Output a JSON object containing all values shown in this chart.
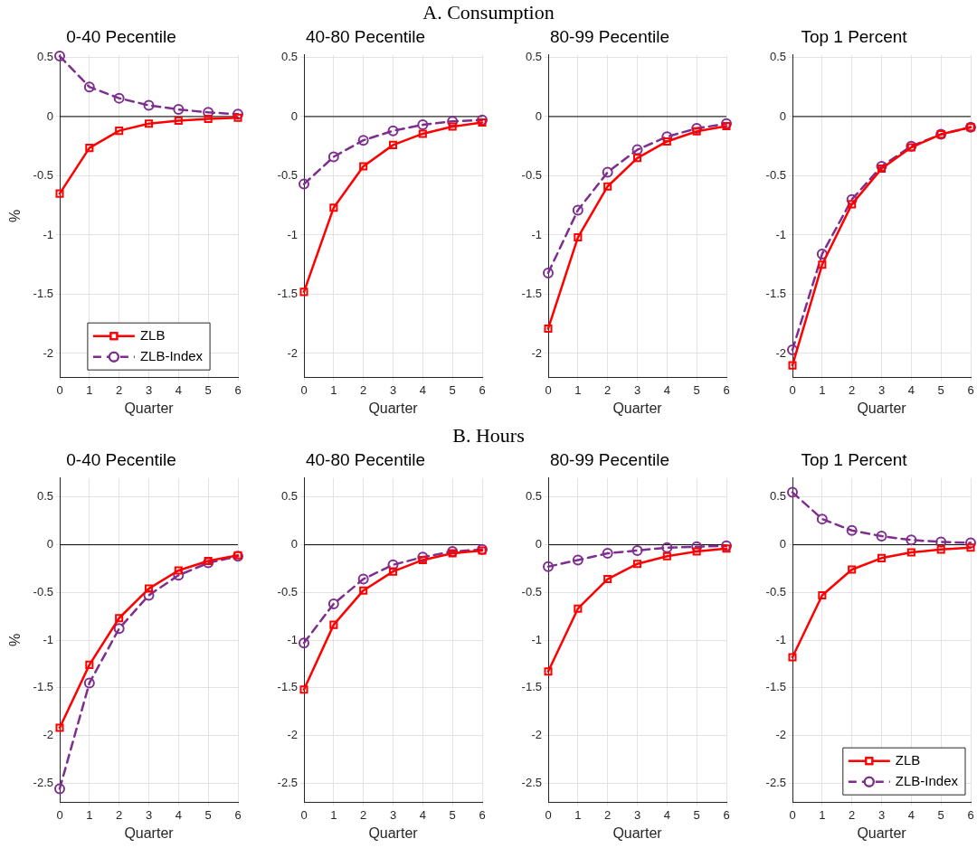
{
  "chart_data": [
    {
      "type": "line",
      "title": "0-40 Pecentile",
      "annotations": [
        "A. Consumption"
      ],
      "xlabel": "Quarter",
      "ylabel": "%",
      "x": [
        0,
        1,
        2,
        3,
        4,
        5,
        6
      ],
      "xlim": [
        0,
        6
      ],
      "xticks": [
        0,
        1,
        2,
        3,
        4,
        5,
        6
      ],
      "ylim": [
        -2.2,
        0.52
      ],
      "yticks": [
        -2,
        -1.5,
        -1,
        -0.5,
        0,
        0.5
      ],
      "grid": true,
      "legend": "bottom",
      "ref_lines": [
        {
          "axis": "y",
          "value": 0,
          "color": "#000000"
        }
      ],
      "series": [
        {
          "name": "ZLB",
          "color": "#ff0000",
          "marker": "square",
          "line_style": "solid",
          "values": [
            -0.65,
            -0.265,
            -0.12,
            -0.06,
            -0.035,
            -0.02,
            -0.01
          ]
        },
        {
          "name": "ZLB-Index",
          "color": "#7e2f8e",
          "marker": "circle",
          "line_style": "dashed",
          "values": [
            0.51,
            0.25,
            0.155,
            0.095,
            0.06,
            0.035,
            0.02
          ]
        }
      ]
    },
    {
      "type": "line",
      "title": "40-80 Pecentile",
      "xlabel": "Quarter",
      "x": [
        0,
        1,
        2,
        3,
        4,
        5,
        6
      ],
      "xlim": [
        0,
        6
      ],
      "xticks": [
        0,
        1,
        2,
        3,
        4,
        5,
        6
      ],
      "ylim": [
        -2.2,
        0.52
      ],
      "yticks": [
        -2,
        -1.5,
        -1,
        -0.5,
        0,
        0.5
      ],
      "grid": true,
      "ref_lines": [
        {
          "axis": "y",
          "value": 0,
          "color": "#000000"
        }
      ],
      "series": [
        {
          "color": "#ff0000",
          "marker": "square",
          "line_style": "solid",
          "values": [
            -1.48,
            -0.77,
            -0.42,
            -0.24,
            -0.145,
            -0.085,
            -0.05
          ]
        },
        {
          "color": "#7e2f8e",
          "marker": "circle",
          "line_style": "dashed",
          "values": [
            -0.57,
            -0.34,
            -0.2,
            -0.12,
            -0.07,
            -0.04,
            -0.03
          ]
        }
      ]
    },
    {
      "type": "line",
      "title": "80-99 Pecentile",
      "xlabel": "Quarter",
      "x": [
        0,
        1,
        2,
        3,
        4,
        5,
        6
      ],
      "xlim": [
        0,
        6
      ],
      "xticks": [
        0,
        1,
        2,
        3,
        4,
        5,
        6
      ],
      "ylim": [
        -2.2,
        0.52
      ],
      "yticks": [
        -2,
        -1.5,
        -1,
        -0.5,
        0,
        0.5
      ],
      "grid": true,
      "ref_lines": [
        {
          "axis": "y",
          "value": 0,
          "color": "#000000"
        }
      ],
      "series": [
        {
          "color": "#ff0000",
          "marker": "square",
          "line_style": "solid",
          "values": [
            -1.79,
            -1.02,
            -0.59,
            -0.35,
            -0.21,
            -0.125,
            -0.08
          ]
        },
        {
          "color": "#7e2f8e",
          "marker": "circle",
          "line_style": "dashed",
          "values": [
            -1.32,
            -0.79,
            -0.47,
            -0.28,
            -0.17,
            -0.1,
            -0.06
          ]
        }
      ]
    },
    {
      "type": "line",
      "title": "Top 1 Percent",
      "xlabel": "Quarter",
      "x": [
        0,
        1,
        2,
        3,
        4,
        5,
        6
      ],
      "xlim": [
        0,
        6
      ],
      "xticks": [
        0,
        1,
        2,
        3,
        4,
        5,
        6
      ],
      "ylim": [
        -2.2,
        0.52
      ],
      "yticks": [
        -2,
        -1.5,
        -1,
        -0.5,
        0,
        0.5
      ],
      "grid": true,
      "ref_lines": [
        {
          "axis": "y",
          "value": 0,
          "color": "#000000"
        }
      ],
      "series": [
        {
          "color": "#ff0000",
          "marker": "square",
          "line_style": "solid",
          "values": [
            -2.1,
            -1.25,
            -0.74,
            -0.44,
            -0.26,
            -0.15,
            -0.09
          ]
        },
        {
          "color": "#7e2f8e",
          "marker": "circle",
          "line_style": "dashed",
          "values": [
            -1.97,
            -1.16,
            -0.7,
            -0.42,
            -0.25,
            -0.15,
            -0.09
          ]
        }
      ]
    },
    {
      "type": "line",
      "title": "0-40 Pecentile",
      "annotations": [
        "B. Hours"
      ],
      "xlabel": "Quarter",
      "ylabel": "%",
      "x": [
        0,
        1,
        2,
        3,
        4,
        5,
        6
      ],
      "xlim": [
        0,
        6
      ],
      "xticks": [
        0,
        1,
        2,
        3,
        4,
        5,
        6
      ],
      "ylim": [
        -2.7,
        0.7
      ],
      "yticks": [
        -2.5,
        -2,
        -1.5,
        -1,
        -0.5,
        0,
        0.5
      ],
      "grid": true,
      "ref_lines": [
        {
          "axis": "y",
          "value": 0,
          "color": "#000000"
        }
      ],
      "series": [
        {
          "color": "#ff0000",
          "marker": "square",
          "line_style": "solid",
          "values": [
            -1.92,
            -1.26,
            -0.77,
            -0.46,
            -0.27,
            -0.17,
            -0.11
          ]
        },
        {
          "color": "#7e2f8e",
          "marker": "circle",
          "line_style": "dashed",
          "values": [
            -2.56,
            -1.45,
            -0.88,
            -0.53,
            -0.32,
            -0.19,
            -0.12
          ]
        }
      ]
    },
    {
      "type": "line",
      "title": "40-80 Pecentile",
      "xlabel": "Quarter",
      "x": [
        0,
        1,
        2,
        3,
        4,
        5,
        6
      ],
      "xlim": [
        0,
        6
      ],
      "xticks": [
        0,
        1,
        2,
        3,
        4,
        5,
        6
      ],
      "ylim": [
        -2.7,
        0.7
      ],
      "yticks": [
        -2.5,
        -2,
        -1.5,
        -1,
        -0.5,
        0,
        0.5
      ],
      "grid": true,
      "ref_lines": [
        {
          "axis": "y",
          "value": 0,
          "color": "#000000"
        }
      ],
      "series": [
        {
          "color": "#ff0000",
          "marker": "square",
          "line_style": "solid",
          "values": [
            -1.52,
            -0.84,
            -0.48,
            -0.28,
            -0.16,
            -0.09,
            -0.06
          ]
        },
        {
          "color": "#7e2f8e",
          "marker": "circle",
          "line_style": "dashed",
          "values": [
            -1.03,
            -0.62,
            -0.36,
            -0.21,
            -0.13,
            -0.07,
            -0.05
          ]
        }
      ]
    },
    {
      "type": "line",
      "title": "80-99 Pecentile",
      "xlabel": "Quarter",
      "x": [
        0,
        1,
        2,
        3,
        4,
        5,
        6
      ],
      "xlim": [
        0,
        6
      ],
      "xticks": [
        0,
        1,
        2,
        3,
        4,
        5,
        6
      ],
      "ylim": [
        -2.7,
        0.7
      ],
      "yticks": [
        -2.5,
        -2,
        -1.5,
        -1,
        -0.5,
        0,
        0.5
      ],
      "grid": true,
      "ref_lines": [
        {
          "axis": "y",
          "value": 0,
          "color": "#000000"
        }
      ],
      "series": [
        {
          "color": "#ff0000",
          "marker": "square",
          "line_style": "solid",
          "values": [
            -1.33,
            -0.67,
            -0.36,
            -0.2,
            -0.12,
            -0.07,
            -0.04
          ]
        },
        {
          "color": "#7e2f8e",
          "marker": "circle",
          "line_style": "dashed",
          "values": [
            -0.23,
            -0.16,
            -0.09,
            -0.06,
            -0.03,
            -0.02,
            -0.01
          ]
        }
      ]
    },
    {
      "type": "line",
      "title": "Top 1 Percent",
      "xlabel": "Quarter",
      "x": [
        0,
        1,
        2,
        3,
        4,
        5,
        6
      ],
      "xlim": [
        0,
        6
      ],
      "xticks": [
        0,
        1,
        2,
        3,
        4,
        5,
        6
      ],
      "ylim": [
        -2.7,
        0.7
      ],
      "yticks": [
        -2.5,
        -2,
        -1.5,
        -1,
        -0.5,
        0,
        0.5
      ],
      "grid": true,
      "legend": "bottom right",
      "ref_lines": [
        {
          "axis": "y",
          "value": 0,
          "color": "#000000"
        }
      ],
      "series": [
        {
          "name": "ZLB",
          "color": "#ff0000",
          "marker": "square",
          "line_style": "solid",
          "values": [
            -1.18,
            -0.53,
            -0.26,
            -0.14,
            -0.08,
            -0.05,
            -0.03
          ]
        },
        {
          "name": "ZLB-Index",
          "color": "#7e2f8e",
          "marker": "circle",
          "line_style": "dashed",
          "values": [
            0.55,
            0.27,
            0.15,
            0.09,
            0.05,
            0.03,
            0.02
          ]
        }
      ]
    }
  ]
}
